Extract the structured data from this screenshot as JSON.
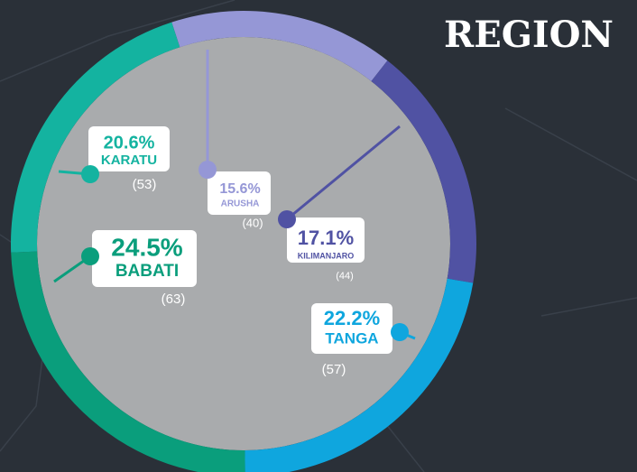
{
  "chart_data": {
    "type": "donut",
    "title": "REGION",
    "categories": [
      "ARUSHA",
      "KILIMANJARO",
      "TANGA",
      "BABATI",
      "KARATU"
    ],
    "values": [
      15.6,
      17.1,
      22.2,
      24.5,
      20.6
    ],
    "value_labels": [
      "15.6%",
      "17.1%",
      "22.2%",
      "24.5%",
      "20.6%"
    ],
    "counts": [
      40,
      44,
      57,
      63,
      53
    ],
    "count_labels": [
      "(40)",
      "(44)",
      "(57)",
      "(63)",
      "(53)"
    ],
    "colors": [
      "#9597d6",
      "#5052a3",
      "#0fa6de",
      "#0a9e7c",
      "#14b3a0"
    ]
  }
}
